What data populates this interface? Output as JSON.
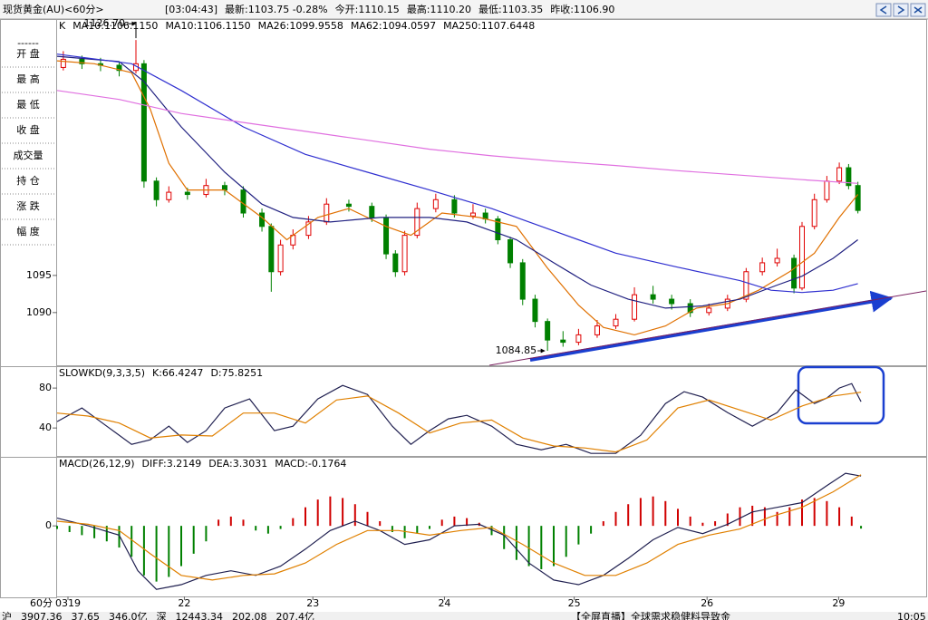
{
  "header": {
    "title": "现货黄金(AU)<60分>",
    "time": "[03:04:43]",
    "quote": [
      "最新:1103.75 -0.28%",
      "今开:1110.15",
      "最高:1110.20",
      "最低:1103.35",
      "昨收:1106.90"
    ]
  },
  "side_labels": [
    "------",
    "开 盘",
    "最 高",
    "最 低",
    "收 盘",
    "成交量",
    "持 仓",
    "涨 跌",
    "幅 度"
  ],
  "chart_data": [
    {
      "type": "candlestick",
      "legend_prefix": "K",
      "legend_extra": "MA10:1106.1150",
      "up_color": "#e00000",
      "down_color": "#008000",
      "ylim": [
        1082.9,
        1129.4
      ],
      "yticks": [
        1090,
        1095
      ],
      "xlim": [
        0,
        140
      ],
      "max_label": "1126.70",
      "min_label": "1084.85",
      "x": [
        1,
        4,
        7,
        10,
        12.7,
        14,
        16,
        18,
        21,
        24,
        27,
        30,
        33,
        34.5,
        36,
        38,
        40.5,
        43.4,
        47,
        50.7,
        53,
        54.5,
        56,
        58,
        61,
        64,
        67,
        69,
        71,
        73,
        75,
        77,
        79,
        81.5,
        84,
        87,
        90,
        93,
        96,
        99,
        102,
        105,
        108,
        111,
        113.6,
        116,
        118.7,
        120,
        122,
        124,
        126,
        127.5,
        129
      ],
      "ohlc": [
        [
          1123.0,
          1125.2,
          1122.6,
          1124.1
        ],
        [
          1124.1,
          1124.6,
          1122.8,
          1123.5
        ],
        [
          1123.5,
          1124.3,
          1122.5,
          1123.3
        ],
        [
          1123.3,
          1123.8,
          1121.8,
          1122.6
        ],
        [
          1122.6,
          1126.7,
          1122.2,
          1123.5
        ],
        [
          1123.5,
          1124.0,
          1106.8,
          1107.7
        ],
        [
          1107.7,
          1108.2,
          1104.3,
          1105.2
        ],
        [
          1105.2,
          1107.0,
          1104.8,
          1106.2
        ],
        [
          1106.2,
          1106.8,
          1105.2,
          1105.9
        ],
        [
          1105.9,
          1108.0,
          1105.5,
          1107.1
        ],
        [
          1107.1,
          1107.6,
          1105.8,
          1106.5
        ],
        [
          1106.5,
          1107.0,
          1102.8,
          1103.4
        ],
        [
          1103.4,
          1104.0,
          1100.9,
          1101.6
        ],
        [
          1101.6,
          1102.0,
          1092.8,
          1095.5
        ],
        [
          1095.5,
          1099.8,
          1095.0,
          1099.1
        ],
        [
          1099.1,
          1101.2,
          1098.5,
          1100.4
        ],
        [
          1100.4,
          1103.0,
          1099.9,
          1102.2
        ],
        [
          1102.2,
          1105.4,
          1101.8,
          1104.6
        ],
        [
          1104.6,
          1105.2,
          1103.6,
          1104.3
        ],
        [
          1104.3,
          1104.8,
          1102.2,
          1102.8
        ],
        [
          1102.8,
          1103.2,
          1097.2,
          1097.9
        ],
        [
          1097.9,
          1098.4,
          1094.8,
          1095.5
        ],
        [
          1095.5,
          1101.0,
          1095.0,
          1100.4
        ],
        [
          1100.4,
          1104.8,
          1100.0,
          1104.0
        ],
        [
          1104.0,
          1106.0,
          1103.5,
          1105.2
        ],
        [
          1105.2,
          1105.8,
          1102.8,
          1103.4
        ],
        [
          1103.0,
          1104.6,
          1102.6,
          1103.4
        ],
        [
          1103.4,
          1104.0,
          1102.0,
          1102.6
        ],
        [
          1102.6,
          1103.0,
          1099.2,
          1099.8
        ],
        [
          1099.8,
          1100.2,
          1096.0,
          1096.7
        ],
        [
          1096.7,
          1097.2,
          1091.0,
          1091.8
        ],
        [
          1091.8,
          1092.4,
          1088.0,
          1088.8
        ],
        [
          1088.8,
          1089.2,
          1084.85,
          1086.3
        ],
        [
          1086.3,
          1087.5,
          1085.4,
          1086.0
        ],
        [
          1086.0,
          1087.8,
          1085.6,
          1087.0
        ],
        [
          1087.0,
          1089.0,
          1086.6,
          1088.2
        ],
        [
          1088.2,
          1089.8,
          1087.8,
          1089.1
        ],
        [
          1089.1,
          1093.4,
          1088.8,
          1092.4
        ],
        [
          1092.4,
          1093.6,
          1091.2,
          1091.8
        ],
        [
          1091.8,
          1092.4,
          1090.4,
          1091.2
        ],
        [
          1091.2,
          1091.8,
          1089.4,
          1090.0
        ],
        [
          1090.0,
          1091.2,
          1089.6,
          1090.6
        ],
        [
          1090.6,
          1092.4,
          1090.2,
          1091.8
        ],
        [
          1091.8,
          1096.0,
          1091.4,
          1095.5
        ],
        [
          1095.5,
          1097.4,
          1095.0,
          1096.7
        ],
        [
          1096.7,
          1098.6,
          1096.2,
          1097.3
        ],
        [
          1097.3,
          1097.8,
          1092.6,
          1093.3
        ],
        [
          1093.3,
          1102.2,
          1093.0,
          1101.6
        ],
        [
          1101.6,
          1106.0,
          1101.2,
          1105.2
        ],
        [
          1105.2,
          1108.4,
          1104.8,
          1107.7
        ],
        [
          1107.7,
          1110.2,
          1107.3,
          1109.5
        ],
        [
          1109.5,
          1110.0,
          1106.6,
          1107.1
        ],
        [
          1107.1,
          1107.6,
          1103.35,
          1103.75
        ]
      ],
      "series": [
        {
          "name": "MA10:1106.1150",
          "color": "#e07000",
          "x": [
            0,
            6,
            12,
            15,
            18,
            21,
            27,
            33,
            37,
            42,
            47,
            53,
            57,
            62,
            68,
            74,
            79,
            84,
            88,
            93,
            98,
            103,
            108,
            113,
            118,
            122,
            126,
            129
          ],
          "values": [
            1123.9,
            1123.5,
            1122.3,
            1117.4,
            1110.1,
            1106.5,
            1106.5,
            1102.8,
            1099.8,
            1102.8,
            1104,
            1101.6,
            1100.4,
            1103.4,
            1102.8,
            1101.6,
            1096,
            1091,
            1088,
            1087,
            1088.2,
            1090.6,
            1091.2,
            1093,
            1095.5,
            1098,
            1102.8,
            1105.9
          ]
        },
        {
          "name": "MA26:1099.9558",
          "color": "#202080",
          "x": [
            0,
            10,
            14,
            20,
            27,
            33,
            38,
            44,
            52,
            60,
            66,
            74,
            80,
            86,
            92,
            98,
            104,
            110,
            116,
            120,
            125,
            129
          ],
          "values": [
            1124.5,
            1123.8,
            1121.1,
            1115,
            1108.9,
            1104.6,
            1102.8,
            1102.2,
            1102.8,
            1102.8,
            1102.2,
            1099.8,
            1096.7,
            1093.7,
            1091.8,
            1090.6,
            1090.9,
            1091.8,
            1093.7,
            1094.9,
            1097.3,
            1099.8
          ]
        },
        {
          "name": "MA62:1094.0597",
          "color": "#3030d0",
          "x": [
            0,
            12,
            20,
            30,
            40,
            50,
            60,
            70,
            80,
            90,
            100,
            110,
            115,
            120,
            125,
            129
          ],
          "values": [
            1124.8,
            1123.5,
            1119.9,
            1115,
            1111.3,
            1108.9,
            1106.5,
            1104,
            1101,
            1098,
            1096.1,
            1094.3,
            1093,
            1092.7,
            1093,
            1093.9
          ]
        },
        {
          "name": "MA250:1107.6448",
          "color": "#e070e0",
          "x": [
            0,
            10,
            20,
            30,
            40,
            50,
            60,
            70,
            80,
            90,
            100,
            110,
            120,
            129
          ],
          "values": [
            1119.9,
            1118.7,
            1116.8,
            1115.6,
            1114.4,
            1113.2,
            1112,
            1111.1,
            1110.4,
            1109.8,
            1109.1,
            1108.5,
            1107.9,
            1107.4
          ]
        }
      ]
    },
    {
      "type": "line",
      "legend_prefix": "SLOWKD(9,3,3,5)",
      "ylim": [
        12,
        101
      ],
      "yticks": [
        40,
        80
      ],
      "xlim": [
        0,
        140
      ],
      "series": [
        {
          "name": "K:66.4247",
          "color": "#202050",
          "x": [
            0,
            4,
            8,
            12,
            15,
            18,
            21,
            24,
            27,
            31,
            35,
            38,
            42,
            46,
            50,
            54,
            57,
            60,
            63,
            66,
            70,
            74,
            78,
            82,
            86,
            90,
            94,
            98,
            101,
            104,
            108,
            112,
            116,
            119,
            122,
            124,
            126,
            128,
            129.5
          ],
          "values": [
            46.4,
            60,
            41.8,
            23.6,
            28.2,
            41.8,
            25.5,
            37.3,
            60,
            69.1,
            37.3,
            41.8,
            69.1,
            82.7,
            73.6,
            41.8,
            23.6,
            37.3,
            49.1,
            52.7,
            41.8,
            23.6,
            18.2,
            23.6,
            14.5,
            14.5,
            32.7,
            64.5,
            76.4,
            70.9,
            55.5,
            41.8,
            55.5,
            78.2,
            64.5,
            70,
            80,
            84.5,
            66.4
          ]
        },
        {
          "name": "D:75.8251",
          "color": "#e08000",
          "x": [
            0,
            5,
            10,
            15,
            20,
            25,
            30,
            35,
            40,
            45,
            50,
            55,
            60,
            65,
            70,
            75,
            80,
            85,
            90,
            95,
            100,
            105,
            110,
            115,
            120,
            125,
            129.5
          ],
          "values": [
            55,
            52,
            45,
            30,
            33,
            32,
            55,
            55,
            45,
            68,
            72,
            55,
            35,
            45,
            48,
            30,
            22,
            20,
            16,
            28,
            60,
            68,
            58,
            48,
            62,
            72,
            75.8
          ]
        }
      ]
    },
    {
      "type": "macd",
      "legend_prefix": "MACD(26,12,9)",
      "ylim": [
        -4.5,
        4.4
      ],
      "yticks": [
        0
      ],
      "xlim": [
        0,
        140
      ],
      "xticks": [
        {
          "value": 1.75,
          "label": "0319"
        },
        {
          "value": 20.5,
          "label": "22"
        },
        {
          "value": 41.2,
          "label": "23"
        },
        {
          "value": 62.4,
          "label": "24"
        },
        {
          "value": 83.3,
          "label": "25"
        },
        {
          "value": 104.7,
          "label": "26"
        },
        {
          "value": 125.9,
          "label": "29"
        }
      ],
      "histogram": {
        "name": "MACD:-0.1764",
        "up_color": "#d00000",
        "down_color": "#008000",
        "x": [
          0,
          2,
          4,
          6,
          8,
          10,
          12,
          14,
          16,
          18,
          20,
          22,
          24,
          26,
          28,
          30,
          32,
          34,
          36,
          38,
          40,
          42,
          44,
          46,
          48,
          50,
          52,
          54,
          56,
          58,
          60,
          62,
          64,
          66,
          68,
          70,
          72,
          74,
          76,
          78,
          80,
          82,
          84,
          86,
          88,
          90,
          92,
          94,
          96,
          98,
          100,
          102,
          104,
          106,
          108,
          110,
          112,
          114,
          116,
          118,
          120,
          122,
          124,
          126,
          128,
          129.5
        ],
        "values": [
          -0.2,
          -0.4,
          -0.6,
          -0.8,
          -1.0,
          -1.4,
          -2.0,
          -3.2,
          -3.6,
          -3.3,
          -2.6,
          -1.8,
          -1.0,
          0.4,
          0.6,
          0.4,
          -0.3,
          -0.5,
          -0.2,
          0.5,
          1.2,
          1.7,
          1.9,
          1.8,
          1.4,
          0.9,
          0.3,
          -0.4,
          -0.8,
          -0.5,
          -0.2,
          0.4,
          0.6,
          0.5,
          0.2,
          -0.6,
          -1.5,
          -2.2,
          -2.6,
          -2.8,
          -2.6,
          -2.0,
          -1.2,
          -0.5,
          0.3,
          0.9,
          1.4,
          1.8,
          1.9,
          1.6,
          1.1,
          0.6,
          0.2,
          0.3,
          0.8,
          1.2,
          1.3,
          1.2,
          0.9,
          1.2,
          1.7,
          1.8,
          1.6,
          1.2,
          0.6,
          -0.1764
        ]
      },
      "series": [
        {
          "name": "DIFF:3.2149",
          "color": "#202050",
          "x": [
            0,
            5,
            10,
            13,
            16,
            20,
            24,
            28,
            32,
            36,
            40,
            44,
            48,
            52,
            56,
            60,
            64,
            68,
            72,
            76,
            80,
            84,
            88,
            92,
            96,
            100,
            104,
            108,
            112,
            116,
            120,
            124,
            127,
            129.5
          ],
          "values": [
            0.5,
            0,
            -0.6,
            -2.9,
            -4.1,
            -3.8,
            -3.2,
            -2.9,
            -3.2,
            -2.6,
            -1.5,
            -0.3,
            0.3,
            -0.3,
            -1.2,
            -0.9,
            0,
            0.1,
            -0.6,
            -2.4,
            -3.5,
            -3.8,
            -3.2,
            -2.1,
            -0.9,
            -0.1,
            -0.5,
            0.1,
            0.9,
            1.2,
            1.5,
            2.6,
            3.4,
            3.2149
          ]
        },
        {
          "name": "DEA:3.3031",
          "color": "#e08000",
          "x": [
            0,
            5,
            10,
            15,
            20,
            25,
            30,
            35,
            40,
            45,
            50,
            55,
            60,
            65,
            70,
            75,
            80,
            85,
            90,
            95,
            100,
            105,
            110,
            115,
            120,
            125,
            129.5
          ],
          "values": [
            0.3,
            0.1,
            -0.3,
            -1.8,
            -3.2,
            -3.5,
            -3.2,
            -3.1,
            -2.4,
            -1.2,
            -0.3,
            -0.3,
            -0.6,
            -0.3,
            -0.1,
            -1.2,
            -2.4,
            -3.2,
            -3.2,
            -2.4,
            -1.2,
            -0.6,
            -0.2,
            0.6,
            1.2,
            2.2,
            3.3031
          ]
        }
      ]
    }
  ],
  "footer": {
    "period": "60分",
    "status": [
      "沪",
      "3907.36",
      "37.65",
      "346.0亿",
      "深",
      "12443.34",
      "202.08",
      "207.4亿",
      "【全屏直播】全球需求稳健料导致金",
      "10:05"
    ]
  }
}
